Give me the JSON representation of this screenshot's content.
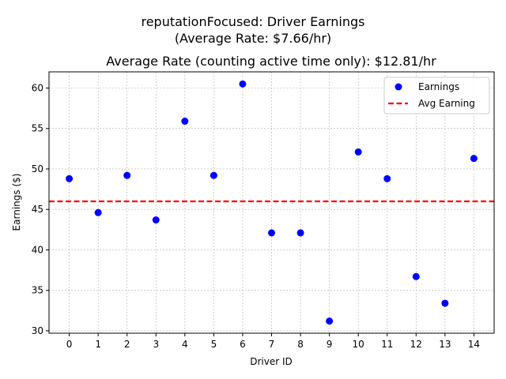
{
  "suptitle": {
    "line1": "reputationFocused: Driver Earnings",
    "line2": "(Average Rate: $7.66/hr)"
  },
  "chart_data": {
    "type": "scatter",
    "title": "Average Rate (counting active time only): $12.81/hr",
    "xlabel": "Driver ID",
    "ylabel": "Earnings ($)",
    "x": [
      0,
      1,
      2,
      3,
      4,
      5,
      6,
      7,
      8,
      9,
      10,
      11,
      12,
      13,
      14
    ],
    "series": [
      {
        "name": "Earnings",
        "color": "#0000ff",
        "values": [
          48.8,
          44.6,
          49.2,
          43.7,
          55.9,
          49.2,
          60.5,
          42.1,
          42.1,
          31.2,
          52.1,
          48.8,
          36.7,
          33.4,
          51.3
        ]
      }
    ],
    "reference_lines": [
      {
        "name": "Avg Earning",
        "y": 46.0,
        "color": "#ff0000",
        "style": "dashed"
      }
    ],
    "x_ticks": [
      "0",
      "1",
      "2",
      "3",
      "4",
      "5",
      "6",
      "7",
      "8",
      "9",
      "10",
      "11",
      "12",
      "13",
      "14"
    ],
    "y_ticks": [
      "30",
      "35",
      "40",
      "45",
      "50",
      "55",
      "60"
    ],
    "xlim": [
      -0.7,
      14.7
    ],
    "ylim": [
      29.7,
      62.0
    ],
    "grid": true,
    "legend_position": "upper-right"
  }
}
